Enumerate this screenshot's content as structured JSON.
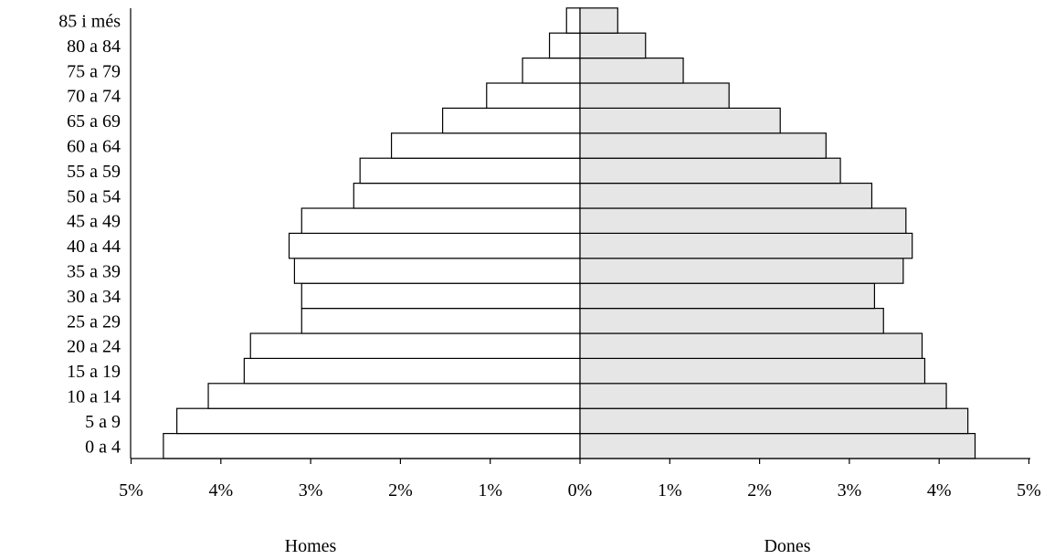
{
  "chart_data": {
    "type": "bar",
    "categories": [
      "0 a 4",
      "5 a 9",
      "10 a 14",
      "15 a 19",
      "20 a 24",
      "25 a 29",
      "30 a 34",
      "35 a 39",
      "40 a 44",
      "45 a 49",
      "50 a 54",
      "55 a 59",
      "60 a 64",
      "65 a 69",
      "70 a 74",
      "75 a 79",
      "80 a 84",
      "85 i més"
    ],
    "series": [
      {
        "name": "Homes",
        "side": "left",
        "values": [
          4.64,
          4.49,
          4.14,
          3.74,
          3.67,
          3.1,
          3.1,
          3.18,
          3.24,
          3.1,
          2.52,
          2.45,
          2.1,
          1.53,
          1.04,
          0.64,
          0.34,
          0.15
        ]
      },
      {
        "name": "Dones",
        "side": "right",
        "values": [
          4.4,
          4.32,
          4.08,
          3.84,
          3.81,
          3.38,
          3.28,
          3.6,
          3.7,
          3.63,
          3.25,
          2.9,
          2.74,
          2.23,
          1.66,
          1.15,
          0.73,
          0.42
        ]
      }
    ],
    "x_ticks": [
      "5%",
      "4%",
      "3%",
      "2%",
      "1%",
      "0%",
      "1%",
      "2%",
      "3%",
      "4%",
      "5%"
    ],
    "xlim": [
      -5,
      5
    ],
    "grid": false,
    "colors": {
      "Homes": "#ffffff",
      "Dones": "#e6e6e6",
      "stroke": "#000000"
    }
  }
}
